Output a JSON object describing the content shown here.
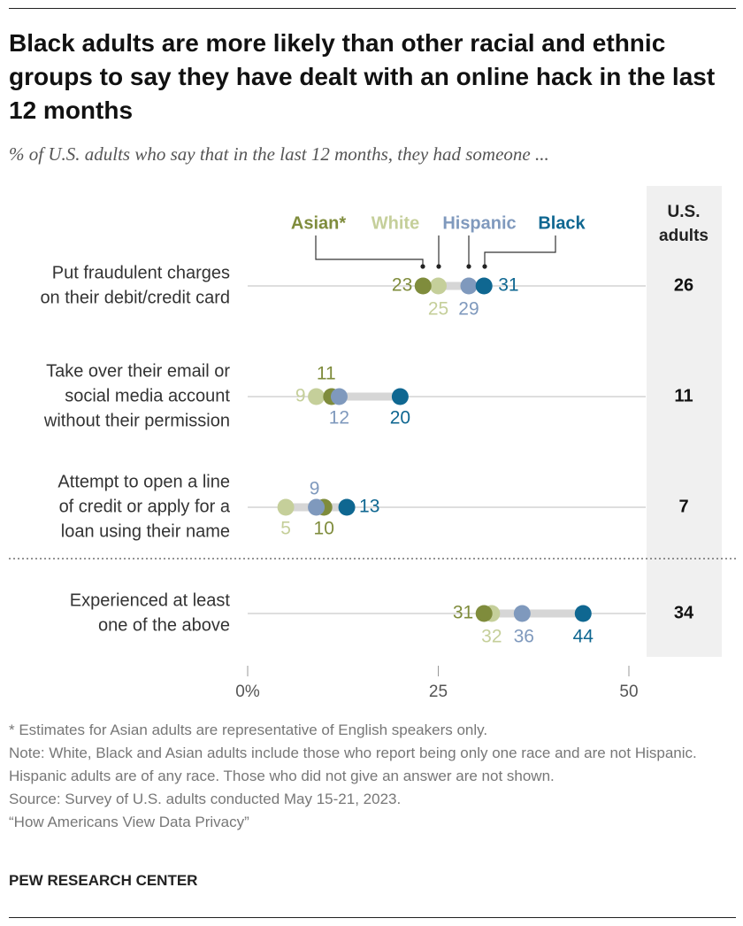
{
  "title": "Black adults are more likely than other racial and ethnic groups to say they have dealt with an online hack in the last 12 months",
  "subtitle": "% of U.S. adults who say that in the last 12 months, they had someone ...",
  "colors": {
    "asian": "#7f8c3c",
    "white": "#c5cf9a",
    "hispanic": "#7f99bd",
    "black": "#0f6791",
    "track": "#d6d6d6",
    "us_column": "#f0f0f0"
  },
  "chart_data": {
    "type": "dot",
    "xlim": [
      0,
      50
    ],
    "x_ticks": [
      0,
      25,
      50
    ],
    "x_tick_labels": [
      "0%",
      "25",
      "50"
    ],
    "total_column_header": "U.S. adults",
    "series": [
      {
        "key": "asian",
        "name": "Asian*"
      },
      {
        "key": "white",
        "name": "White"
      },
      {
        "key": "hispanic",
        "name": "Hispanic"
      },
      {
        "key": "black",
        "name": "Black"
      }
    ],
    "rows": [
      {
        "label": "Put fraudulent charges on their debit/credit card",
        "asian": 23,
        "white": 25,
        "hispanic": 29,
        "black": 31,
        "us_adults": 26
      },
      {
        "label": "Take over their email or social media account without their permission",
        "asian": 11,
        "white": 9,
        "hispanic": 12,
        "black": 20,
        "us_adults": 11
      },
      {
        "label": "Attempt to open a line of credit or apply for a loan using their name",
        "asian": 10,
        "white": 5,
        "hispanic": 9,
        "black": 13,
        "us_adults": 7
      },
      {
        "label": "Experienced at least one of the above",
        "asian": 31,
        "white": 32,
        "hispanic": 36,
        "black": 44,
        "us_adults": 34
      }
    ]
  },
  "notes": [
    "* Estimates for Asian adults are representative of English speakers only.",
    "Note: White, Black and Asian adults include those who report being only one race and are not Hispanic. Hispanic adults are of any race. Those who did not give an answer are not shown.",
    "Source: Survey of U.S. adults conducted May 15-21, 2023.",
    "“How Americans View Data Privacy”"
  ],
  "footer": "PEW RESEARCH CENTER"
}
